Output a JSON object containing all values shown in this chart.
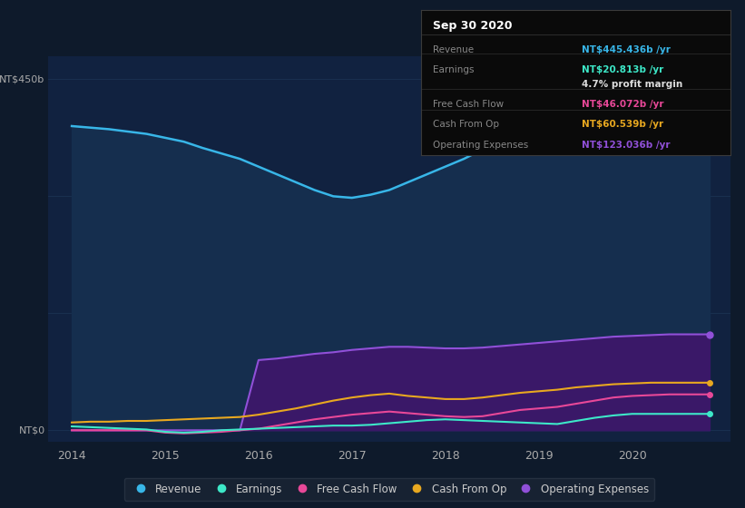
{
  "bg_color": "#0e1a2b",
  "plot_bg_color": "#112240",
  "grid_color": "#1a3050",
  "x_ticks": [
    2014,
    2015,
    2016,
    2017,
    2018,
    2019,
    2020
  ],
  "years": [
    2014.0,
    2014.2,
    2014.4,
    2014.6,
    2014.8,
    2015.0,
    2015.2,
    2015.4,
    2015.6,
    2015.8,
    2016.0,
    2016.2,
    2016.4,
    2016.6,
    2016.8,
    2017.0,
    2017.2,
    2017.4,
    2017.6,
    2017.8,
    2018.0,
    2018.2,
    2018.4,
    2018.6,
    2018.8,
    2019.0,
    2019.2,
    2019.4,
    2019.6,
    2019.8,
    2020.0,
    2020.2,
    2020.4,
    2020.6,
    2020.83
  ],
  "revenue": [
    390,
    388,
    386,
    383,
    380,
    375,
    370,
    362,
    355,
    348,
    338,
    328,
    318,
    308,
    300,
    298,
    302,
    308,
    318,
    328,
    338,
    348,
    360,
    372,
    382,
    392,
    405,
    418,
    430,
    438,
    443,
    446,
    447,
    446,
    445
  ],
  "earnings": [
    5,
    4,
    3,
    2,
    1,
    -2,
    -3,
    -2,
    0,
    1,
    2,
    3,
    4,
    5,
    6,
    6,
    7,
    9,
    11,
    13,
    14,
    13,
    12,
    11,
    10,
    9,
    8,
    12,
    16,
    19,
    21,
    21,
    21,
    21,
    21
  ],
  "free_cash_flow": [
    0,
    0,
    0,
    0,
    0,
    -3,
    -4,
    -3,
    -2,
    0,
    2,
    6,
    10,
    14,
    17,
    20,
    22,
    24,
    22,
    20,
    18,
    17,
    18,
    22,
    26,
    28,
    30,
    34,
    38,
    42,
    44,
    45,
    46,
    46,
    46
  ],
  "cash_from_op": [
    10,
    11,
    11,
    12,
    12,
    13,
    14,
    15,
    16,
    17,
    20,
    24,
    28,
    33,
    38,
    42,
    45,
    47,
    44,
    42,
    40,
    40,
    42,
    45,
    48,
    50,
    52,
    55,
    57,
    59,
    60,
    61,
    61,
    61,
    61
  ],
  "op_expenses": [
    0,
    0,
    0,
    0,
    0,
    0,
    0,
    0,
    0,
    0,
    90,
    92,
    95,
    98,
    100,
    103,
    105,
    107,
    107,
    106,
    105,
    105,
    106,
    108,
    110,
    112,
    114,
    116,
    118,
    120,
    121,
    122,
    123,
    123,
    123
  ],
  "revenue_color": "#38b6e8",
  "earnings_color": "#3de8c8",
  "free_cash_flow_color": "#e84898",
  "cash_from_op_color": "#e8a820",
  "op_expenses_color": "#9050d8",
  "revenue_fill": "#152e4e",
  "op_expenses_fill": "#3a1868",
  "info_box": {
    "title": "Sep 30 2020",
    "rows": [
      {
        "label": "Revenue",
        "value": "NT$445.436b /yr",
        "value_color": "#38b6e8"
      },
      {
        "label": "Earnings",
        "value": "NT$20.813b /yr",
        "value_color": "#3de8c8"
      },
      {
        "label": "",
        "value": "4.7% profit margin",
        "value_color": "#dddddd"
      },
      {
        "label": "Free Cash Flow",
        "value": "NT$46.072b /yr",
        "value_color": "#e84898"
      },
      {
        "label": "Cash From Op",
        "value": "NT$60.539b /yr",
        "value_color": "#e8a820"
      },
      {
        "label": "Operating Expenses",
        "value": "NT$123.036b /yr",
        "value_color": "#9050d8"
      }
    ]
  },
  "legend": [
    {
      "label": "Revenue",
      "color": "#38b6e8"
    },
    {
      "label": "Earnings",
      "color": "#3de8c8"
    },
    {
      "label": "Free Cash Flow",
      "color": "#e84898"
    },
    {
      "label": "Cash From Op",
      "color": "#e8a820"
    },
    {
      "label": "Operating Expenses",
      "color": "#9050d8"
    }
  ]
}
